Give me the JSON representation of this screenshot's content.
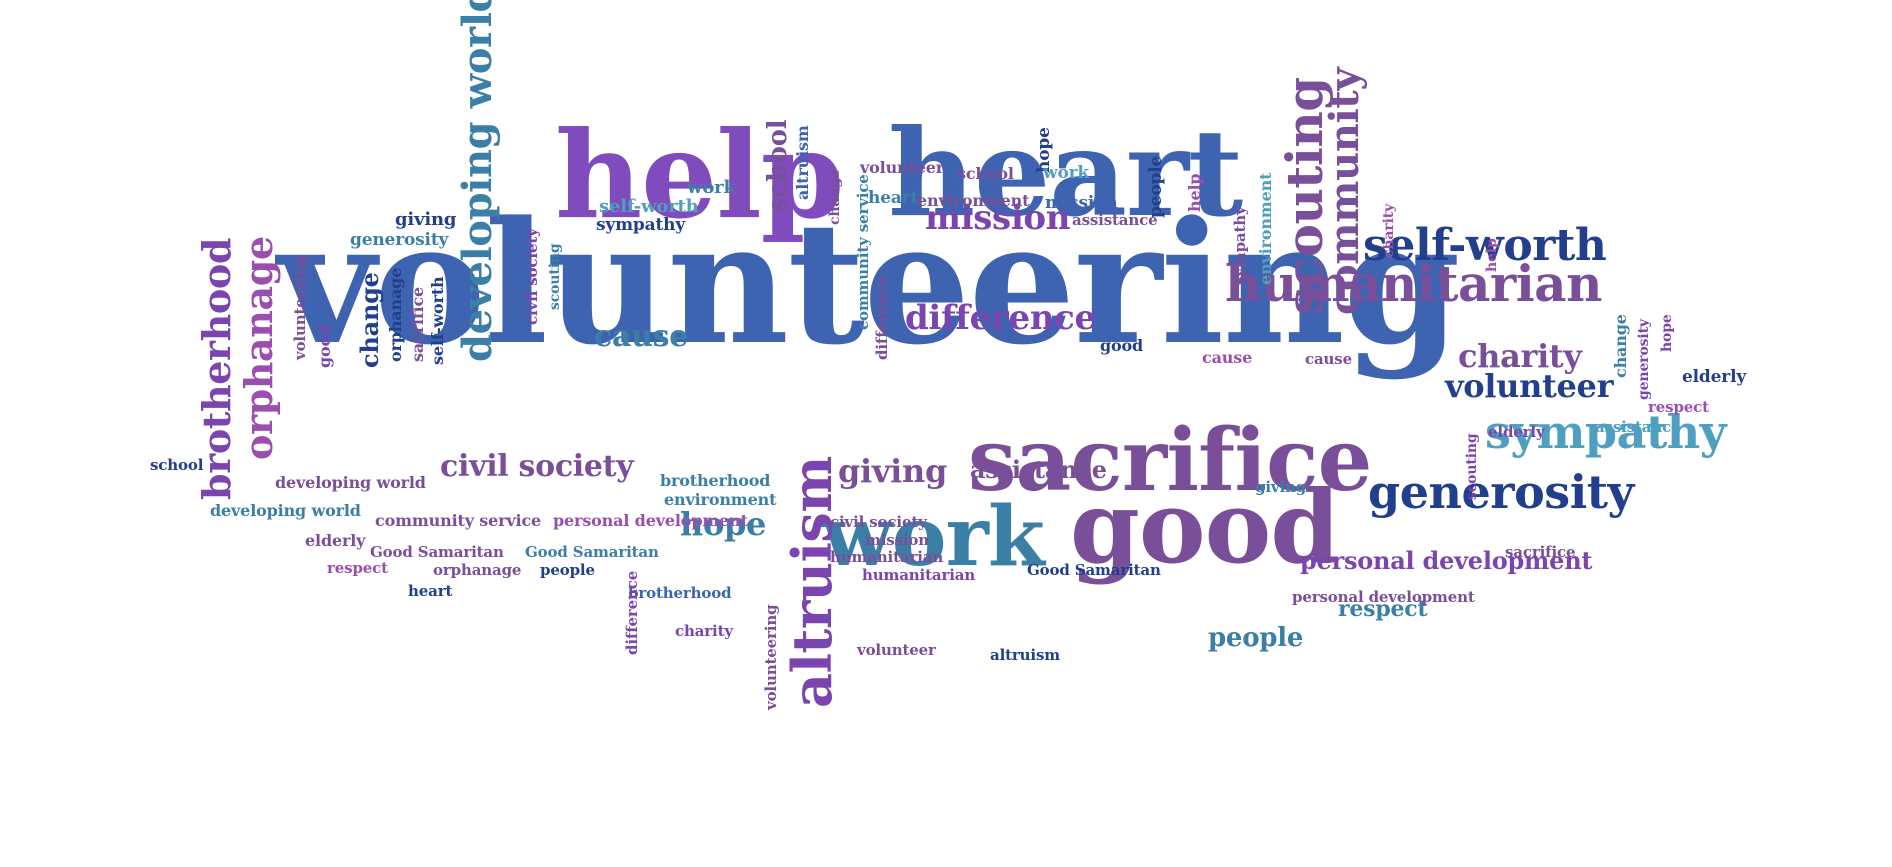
{
  "palette": {
    "purple": "#7f4bbd",
    "violet": "#7b45b0",
    "blue": "#3e63b0",
    "navy": "#213f8c",
    "teal": "#3b7fa6",
    "cyan": "#4f9fc0",
    "plum": "#7a4f99",
    "magenta": "#9a4fae"
  },
  "words": [
    {
      "text": "volunteering",
      "color": "blue",
      "vertical": false
    },
    {
      "text": "help",
      "color": "purple",
      "vertical": false
    },
    {
      "text": "heart",
      "color": "blue",
      "vertical": false
    },
    {
      "text": "sacrifice",
      "color": "plum",
      "vertical": false
    },
    {
      "text": "good",
      "color": "plum",
      "vertical": false
    },
    {
      "text": "work",
      "color": "teal",
      "vertical": false
    },
    {
      "text": "humanitarian",
      "color": "plum",
      "vertical": false
    },
    {
      "text": "self-worth",
      "color": "navy",
      "vertical": false
    },
    {
      "text": "generosity",
      "color": "navy",
      "vertical": false
    },
    {
      "text": "sympathy",
      "color": "cyan",
      "vertical": false
    },
    {
      "text": "scouting",
      "color": "plum",
      "vertical": true
    },
    {
      "text": "community",
      "color": "plum",
      "vertical": true
    },
    {
      "text": "altruism",
      "color": "violet",
      "vertical": true
    },
    {
      "text": "developing world",
      "color": "teal",
      "vertical": true
    },
    {
      "text": "brotherhood",
      "color": "violet",
      "vertical": true
    },
    {
      "text": "orphanage",
      "color": "magenta",
      "vertical": true
    },
    {
      "text": "difference",
      "color": "violet",
      "vertical": false
    },
    {
      "text": "mission",
      "color": "violet",
      "vertical": false
    },
    {
      "text": "charity",
      "color": "plum",
      "vertical": false
    },
    {
      "text": "volunteer",
      "color": "navy",
      "vertical": false
    },
    {
      "text": "civil society",
      "color": "plum",
      "vertical": false
    },
    {
      "text": "giving",
      "color": "plum",
      "vertical": false
    },
    {
      "text": "cause",
      "color": "teal",
      "vertical": false
    },
    {
      "text": "hope",
      "color": "teal",
      "vertical": false
    },
    {
      "text": "personal development",
      "color": "violet",
      "vertical": false
    },
    {
      "text": "people",
      "color": "teal",
      "vertical": false
    },
    {
      "text": "respect",
      "color": "teal",
      "vertical": false
    },
    {
      "text": "assistance",
      "color": "plum",
      "vertical": false
    },
    {
      "text": "school",
      "color": "plum",
      "vertical": true
    },
    {
      "text": "change",
      "color": "navy",
      "vertical": true
    },
    {
      "text": "self-worth",
      "color": "cyan",
      "vertical": false
    },
    {
      "text": "giving",
      "color": "navy",
      "vertical": false
    },
    {
      "text": "generosity",
      "color": "teal",
      "vertical": false
    },
    {
      "text": "work",
      "color": "teal",
      "vertical": false
    },
    {
      "text": "sympathy",
      "color": "navy",
      "vertical": false
    },
    {
      "text": "volunteer",
      "color": "plum",
      "vertical": false
    },
    {
      "text": "school",
      "color": "plum",
      "vertical": false
    },
    {
      "text": "hope",
      "color": "navy",
      "vertical": true
    },
    {
      "text": "work",
      "color": "cyan",
      "vertical": false
    },
    {
      "text": "heart",
      "color": "teal",
      "vertical": false
    },
    {
      "text": "environment",
      "color": "plum",
      "vertical": false
    },
    {
      "text": "mission",
      "color": "blue",
      "vertical": false
    },
    {
      "text": "people",
      "color": "navy",
      "vertical": true
    },
    {
      "text": "help",
      "color": "magenta",
      "vertical": true
    },
    {
      "text": "assistance",
      "color": "plum",
      "vertical": false
    },
    {
      "text": "altruism",
      "color": "blue",
      "vertical": true
    },
    {
      "text": "change",
      "color": "plum",
      "vertical": true
    },
    {
      "text": "community service",
      "color": "teal",
      "vertical": true
    },
    {
      "text": "difference",
      "color": "plum",
      "vertical": true
    },
    {
      "text": "civil society",
      "color": "violet",
      "vertical": true
    },
    {
      "text": "scouting",
      "color": "teal",
      "vertical": true
    },
    {
      "text": "volunteering",
      "color": "plum",
      "vertical": true
    },
    {
      "text": "good",
      "color": "violet",
      "vertical": true
    },
    {
      "text": "orphanage",
      "color": "navy",
      "vertical": true
    },
    {
      "text": "sacrifice",
      "color": "plum",
      "vertical": true
    },
    {
      "text": "self-worth",
      "color": "navy",
      "vertical": true
    },
    {
      "text": "sympathy",
      "color": "plum",
      "vertical": true
    },
    {
      "text": "environment",
      "color": "cyan",
      "vertical": true
    },
    {
      "text": "charity",
      "color": "magenta",
      "vertical": true
    },
    {
      "text": "help",
      "color": "magenta",
      "vertical": true
    },
    {
      "text": "change",
      "color": "teal",
      "vertical": true
    },
    {
      "text": "generosity",
      "color": "violet",
      "vertical": true
    },
    {
      "text": "hope",
      "color": "violet",
      "vertical": true
    },
    {
      "text": "scouting",
      "color": "violet",
      "vertical": true
    },
    {
      "text": "good",
      "color": "navy",
      "vertical": false
    },
    {
      "text": "cause",
      "color": "magenta",
      "vertical": false
    },
    {
      "text": "cause",
      "color": "plum",
      "vertical": false
    },
    {
      "text": "elderly",
      "color": "navy",
      "vertical": false
    },
    {
      "text": "respect",
      "color": "magenta",
      "vertical": false
    },
    {
      "text": "elderly",
      "color": "violet",
      "vertical": false
    },
    {
      "text": "assistance",
      "color": "cyan",
      "vertical": false
    },
    {
      "text": "school",
      "color": "navy",
      "vertical": false
    },
    {
      "text": "developing world",
      "color": "plum",
      "vertical": false
    },
    {
      "text": "developing world",
      "color": "teal",
      "vertical": false
    },
    {
      "text": "brotherhood",
      "color": "teal",
      "vertical": false
    },
    {
      "text": "environment",
      "color": "teal",
      "vertical": false
    },
    {
      "text": "community service",
      "color": "plum",
      "vertical": false
    },
    {
      "text": "personal development",
      "color": "magenta",
      "vertical": false
    },
    {
      "text": "elderly",
      "color": "plum",
      "vertical": false
    },
    {
      "text": "Good Samaritan",
      "color": "plum",
      "vertical": false
    },
    {
      "text": "Good Samaritan",
      "color": "teal",
      "vertical": false
    },
    {
      "text": "respect",
      "color": "magenta",
      "vertical": false
    },
    {
      "text": "orphanage",
      "color": "plum",
      "vertical": false
    },
    {
      "text": "people",
      "color": "navy",
      "vertical": false
    },
    {
      "text": "heart",
      "color": "navy",
      "vertical": false
    },
    {
      "text": "brotherhood",
      "color": "blue",
      "vertical": false
    },
    {
      "text": "charity",
      "color": "violet",
      "vertical": false
    },
    {
      "text": "civil society",
      "color": "plum",
      "vertical": false
    },
    {
      "text": "mission",
      "color": "plum",
      "vertical": false
    },
    {
      "text": "humanitarian",
      "color": "plum",
      "vertical": false
    },
    {
      "text": "humanitarian",
      "color": "violet",
      "vertical": false
    },
    {
      "text": "Good Samaritan",
      "color": "navy",
      "vertical": false
    },
    {
      "text": "giving",
      "color": "teal",
      "vertical": false
    },
    {
      "text": "sacrifice",
      "color": "plum",
      "vertical": false
    },
    {
      "text": "personal development",
      "color": "plum",
      "vertical": false
    },
    {
      "text": "volunteer",
      "color": "plum",
      "vertical": false
    },
    {
      "text": "altruism",
      "color": "navy",
      "vertical": false
    },
    {
      "text": "difference",
      "color": "violet",
      "vertical": true
    },
    {
      "text": "volunteering",
      "color": "plum",
      "vertical": true
    }
  ]
}
